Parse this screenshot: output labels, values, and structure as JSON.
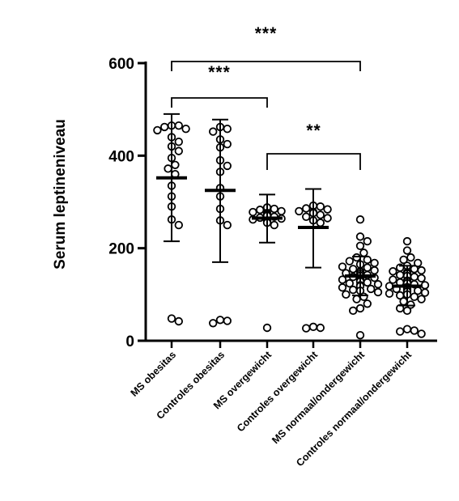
{
  "chart_data": {
    "type": "scatter",
    "ylabel": "Serum leptineniveau",
    "ylim": [
      0,
      600
    ],
    "yticks": [
      0,
      200,
      400,
      600
    ],
    "categories": [
      "MS obesitas",
      "Controles obesitas",
      "MS overgewicht",
      "Controles overgewicht",
      "MS normaal/ondergewicht",
      "Controles normaal/ondergewicht"
    ],
    "groups": [
      {
        "name": "MS obesitas",
        "mean": 352,
        "sd_low": 215,
        "sd_high": 490,
        "values": [
          465,
          458,
          462,
          465,
          455,
          440,
          430,
          420,
          410,
          395,
          380,
          372,
          360,
          335,
          312,
          290,
          262,
          250,
          48,
          42
        ]
      },
      {
        "name": "Controles obesitas",
        "mean": 325,
        "sd_low": 170,
        "sd_high": 478,
        "values": [
          462,
          458,
          452,
          435,
          425,
          418,
          390,
          378,
          365,
          330,
          312,
          285,
          260,
          250,
          45,
          43,
          38
        ]
      },
      {
        "name": "MS overgewicht",
        "mean": 265,
        "sd_low": 212,
        "sd_high": 316,
        "values": [
          288,
          285,
          283,
          280,
          278,
          276,
          274,
          272,
          270,
          268,
          266,
          264,
          262,
          260,
          258,
          255,
          250,
          28
        ]
      },
      {
        "name": "Controles overgewicht",
        "mean": 245,
        "sd_low": 158,
        "sd_high": 328,
        "values": [
          292,
          290,
          286,
          284,
          280,
          278,
          276,
          272,
          268,
          265,
          260,
          255,
          30,
          28,
          27
        ]
      },
      {
        "name": "MS normaal/ondergewicht",
        "mean": 140,
        "sd_low": 98,
        "sd_high": 182,
        "values": [
          262,
          225,
          215,
          205,
          190,
          180,
          175,
          172,
          168,
          165,
          160,
          158,
          155,
          152,
          150,
          148,
          146,
          144,
          142,
          140,
          138,
          136,
          134,
          132,
          130,
          128,
          126,
          124,
          122,
          120,
          118,
          115,
          112,
          110,
          108,
          105,
          100,
          95,
          90,
          80,
          70,
          65,
          12
        ]
      },
      {
        "name": "Controles normaal/ondergewicht",
        "mean": 118,
        "sd_low": 76,
        "sd_high": 162,
        "values": [
          215,
          195,
          180,
          175,
          168,
          162,
          158,
          155,
          152,
          150,
          148,
          145,
          142,
          140,
          138,
          135,
          132,
          130,
          128,
          126,
          124,
          122,
          120,
          118,
          116,
          114,
          112,
          110,
          108,
          106,
          104,
          102,
          100,
          98,
          95,
          90,
          85,
          78,
          70,
          65,
          25,
          22,
          20,
          15
        ]
      }
    ],
    "comparisons": [
      {
        "from": 0,
        "to": 4,
        "label": "***",
        "y": 610
      },
      {
        "from": 0,
        "to": 2,
        "label": "***",
        "y": 520
      },
      {
        "from": 2,
        "to": 4,
        "label": "**",
        "y": 400
      }
    ]
  }
}
